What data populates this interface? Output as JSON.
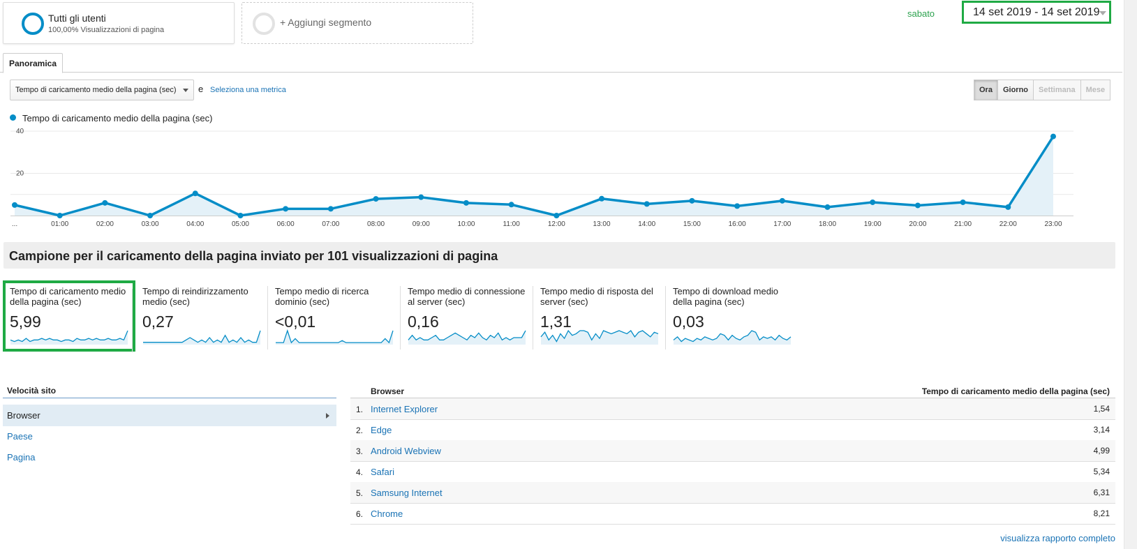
{
  "segments": {
    "primary": {
      "title": "Tutti gli utenti",
      "subtitle": "100,00% Visualizzazioni di pagina"
    },
    "add_label": "+ Aggiungi segmento"
  },
  "date": {
    "day_label": "sabato",
    "range": "14 set 2019 - 14 set 2019"
  },
  "tabs": [
    {
      "label": "Panoramica",
      "active": true
    }
  ],
  "controls": {
    "metric_selected": "Tempo di caricamento medio della pagina (sec)",
    "and_label": "e",
    "select_metric_link": "Seleziona una metrica",
    "periods": [
      {
        "label": "Ora",
        "state": "active"
      },
      {
        "label": "Giorno",
        "state": "enabled"
      },
      {
        "label": "Settimana",
        "state": "disabled"
      },
      {
        "label": "Mese",
        "state": "disabled"
      }
    ]
  },
  "chart_data": {
    "type": "area",
    "series": [
      {
        "name": "Tempo di caricamento medio della pagina (sec)",
        "color": "#058dc7",
        "values": [
          5,
          0,
          6,
          0,
          10.5,
          0,
          3.2,
          3.2,
          7.9,
          8.7,
          6,
          5.2,
          0,
          8,
          5.5,
          7,
          4.5,
          7,
          4,
          6.3,
          4.8,
          6.3,
          4,
          37.5
        ]
      }
    ],
    "categories": [
      "...",
      "01:00",
      "02:00",
      "03:00",
      "04:00",
      "05:00",
      "06:00",
      "07:00",
      "08:00",
      "09:00",
      "10:00",
      "11:00",
      "12:00",
      "13:00",
      "14:00",
      "15:00",
      "16:00",
      "17:00",
      "18:00",
      "19:00",
      "20:00",
      "21:00",
      "22:00",
      "23:00"
    ],
    "y_ticks": [
      "40",
      "20"
    ],
    "ylim": [
      0,
      40
    ],
    "grid": true
  },
  "section_title": "Campione per il caricamento della pagina inviato per 101 visualizzazioni di pagina",
  "metrics": [
    {
      "name": "Tempo di caricamento medio della pagina (sec)",
      "value": "5,99",
      "selected": true
    },
    {
      "name": "Tempo di reindirizzamento medio (sec)",
      "value": "0,27",
      "selected": false
    },
    {
      "name": "Tempo medio di ricerca dominio (sec)",
      "value": "<0,01",
      "selected": false
    },
    {
      "name": "Tempo medio di connessione al server (sec)",
      "value": "0,16",
      "selected": false
    },
    {
      "name": "Tempo medio di risposta del server (sec)",
      "value": "1,31",
      "selected": false
    },
    {
      "name": "Tempo di download medio della pagina (sec)",
      "value": "0,03",
      "selected": false
    }
  ],
  "sparklines": [
    [
      3,
      2,
      3,
      2,
      4,
      2,
      3,
      3,
      4,
      3,
      4,
      3,
      3,
      2,
      3,
      3,
      2,
      4,
      3,
      3,
      4,
      3,
      4,
      3,
      3,
      4,
      3,
      3,
      4,
      3,
      9
    ],
    [
      1,
      1,
      1,
      1,
      1,
      1,
      1,
      1,
      1,
      1,
      1,
      2,
      3,
      2,
      1,
      2,
      1,
      3,
      1,
      2,
      1,
      4,
      1,
      2,
      1,
      3,
      1,
      2,
      1,
      1,
      6
    ],
    [
      1,
      1,
      1,
      7,
      1,
      3,
      1,
      1,
      1,
      1,
      1,
      1,
      1,
      1,
      1,
      1,
      1,
      2,
      1,
      1,
      1,
      1,
      1,
      1,
      1,
      1,
      1,
      1,
      3,
      1,
      7
    ],
    [
      2,
      4,
      2,
      3,
      2,
      2,
      3,
      4,
      2,
      2,
      3,
      4,
      5,
      4,
      3,
      2,
      4,
      3,
      5,
      3,
      2,
      4,
      3,
      5,
      2,
      3,
      2,
      3,
      3,
      3,
      6
    ],
    [
      5,
      8,
      3,
      6,
      2,
      7,
      4,
      9,
      6,
      7,
      9,
      9,
      8,
      3,
      7,
      4,
      9,
      8,
      7,
      8,
      9,
      8,
      7,
      9,
      5,
      8,
      9,
      7,
      5,
      8,
      7
    ],
    [
      3,
      5,
      2,
      4,
      3,
      2,
      4,
      3,
      5,
      4,
      3,
      4,
      7,
      6,
      3,
      6,
      4,
      3,
      5,
      6,
      9,
      8,
      3,
      5,
      4,
      5,
      3,
      6,
      4,
      3,
      5
    ]
  ],
  "dimensions": {
    "header": "Velocità sito",
    "items": [
      {
        "label": "Browser",
        "active": true
      },
      {
        "label": "Paese",
        "active": false
      },
      {
        "label": "Pagina",
        "active": false
      }
    ]
  },
  "table": {
    "col_browser": "Browser",
    "col_metric": "Tempo di caricamento medio della pagina (sec)",
    "rows": [
      {
        "num": "1.",
        "name": "Internet Explorer",
        "value": "1,54"
      },
      {
        "num": "2.",
        "name": "Edge",
        "value": "3,14"
      },
      {
        "num": "3.",
        "name": "Android Webview",
        "value": "4,99"
      },
      {
        "num": "4.",
        "name": "Safari",
        "value": "5,34"
      },
      {
        "num": "5.",
        "name": "Samsung Internet",
        "value": "6,31"
      },
      {
        "num": "6.",
        "name": "Chrome",
        "value": "8,21"
      }
    ],
    "full_report_link": "visualizza rapporto completo"
  }
}
